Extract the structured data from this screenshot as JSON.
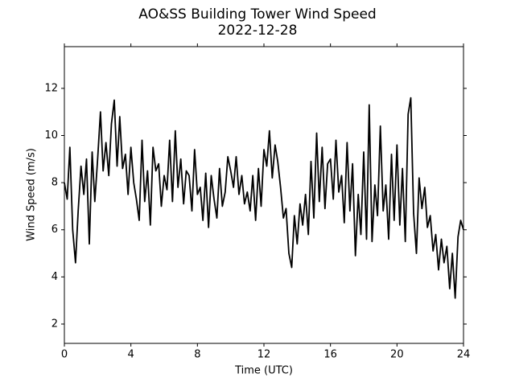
{
  "chart_data": {
    "type": "line",
    "title": "AO&SS Building Tower Wind Speed",
    "subtitle": "2022-12-28",
    "xlabel": "Time (UTC)",
    "ylabel": "Wind Speed (m/s)",
    "color": "#000000",
    "xlim": [
      0,
      24
    ],
    "xticks": [
      0,
      4,
      8,
      12,
      16,
      20,
      24
    ],
    "ylim": [
      1.18,
      13.77
    ],
    "yticks": [
      2,
      4,
      6,
      8,
      10,
      12
    ],
    "x": [
      0,
      0.17,
      0.33,
      0.5,
      0.67,
      0.83,
      1,
      1.17,
      1.33,
      1.5,
      1.67,
      1.83,
      2,
      2.17,
      2.33,
      2.5,
      2.67,
      2.83,
      3,
      3.17,
      3.33,
      3.5,
      3.67,
      3.83,
      4,
      4.17,
      4.33,
      4.5,
      4.67,
      4.83,
      5,
      5.17,
      5.33,
      5.5,
      5.67,
      5.83,
      6,
      6.17,
      6.33,
      6.5,
      6.67,
      6.83,
      7,
      7.17,
      7.33,
      7.5,
      7.67,
      7.83,
      8,
      8.17,
      8.33,
      8.5,
      8.67,
      8.83,
      9,
      9.17,
      9.33,
      9.5,
      9.67,
      9.83,
      10,
      10.17,
      10.33,
      10.5,
      10.67,
      10.83,
      11,
      11.17,
      11.33,
      11.5,
      11.67,
      11.83,
      12,
      12.17,
      12.33,
      12.5,
      12.67,
      12.83,
      13,
      13.17,
      13.33,
      13.5,
      13.67,
      13.83,
      14,
      14.17,
      14.33,
      14.5,
      14.67,
      14.83,
      15,
      15.17,
      15.33,
      15.5,
      15.67,
      15.83,
      16,
      16.17,
      16.33,
      16.5,
      16.67,
      16.83,
      17,
      17.17,
      17.33,
      17.5,
      17.67,
      17.83,
      18,
      18.17,
      18.33,
      18.5,
      18.67,
      18.83,
      19,
      19.17,
      19.33,
      19.5,
      19.67,
      19.83,
      20,
      20.17,
      20.33,
      20.5,
      20.67,
      20.83,
      21,
      21.17,
      21.33,
      21.5,
      21.67,
      21.83,
      22,
      22.17,
      22.33,
      22.5,
      22.67,
      22.83,
      23,
      23.17,
      23.33,
      23.5,
      23.67,
      23.83,
      24
    ],
    "values": [
      8,
      7.3,
      9.5,
      6,
      4.6,
      6.8,
      8.7,
      7.5,
      9,
      5.4,
      9.3,
      7.2,
      9,
      11,
      8.5,
      9.7,
      8.3,
      10.5,
      11.5,
      8.7,
      10.8,
      8.6,
      9.2,
      7.5,
      9.5,
      8,
      7.3,
      6.4,
      9.8,
      7.2,
      8.5,
      6.2,
      9.5,
      8.5,
      8.8,
      7,
      8.3,
      7.7,
      9.8,
      7.2,
      10.2,
      7.8,
      9,
      7.1,
      8.5,
      8.3,
      6.8,
      9.4,
      7.5,
      7.8,
      6.4,
      8.4,
      6.1,
      8.3,
      7.3,
      6.5,
      8.6,
      7,
      7.6,
      9.1,
      8.5,
      7.8,
      9.1,
      7.5,
      8.3,
      7.1,
      7.6,
      6.8,
      8.3,
      6.4,
      8.6,
      7,
      9.4,
      8.7,
      10.2,
      8.2,
      9.6,
      8.9,
      7.8,
      6.5,
      6.9,
      5,
      4.4,
      6.6,
      5.4,
      7.1,
      6.2,
      7.5,
      5.8,
      8.9,
      6.5,
      10.1,
      7.2,
      9.5,
      6.9,
      8.8,
      9,
      7.3,
      9.8,
      7.6,
      8.3,
      6.3,
      9.7,
      6.8,
      8.8,
      4.9,
      7.5,
      5.8,
      9.3,
      5.6,
      11.3,
      5.5,
      7.9,
      6.6,
      10.4,
      6.8,
      7.9,
      5.6,
      9.2,
      6.4,
      9.6,
      6.2,
      8.6,
      5.5,
      10.9,
      11.6,
      6.7,
      5,
      8.2,
      6.9,
      7.8,
      6.1,
      6.6,
      5.1,
      5.8,
      4.3,
      5.6,
      4.6,
      5.3,
      3.5,
      5,
      3.1,
      5.7,
      6.4,
      6
    ]
  }
}
